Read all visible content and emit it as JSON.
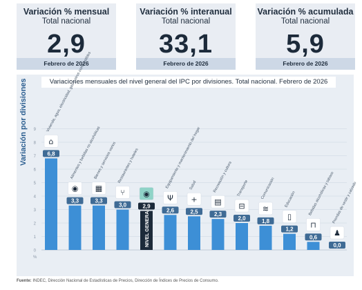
{
  "kpis": [
    {
      "title": "Variación % mensual",
      "subtitle": "Total nacional",
      "value": "2,9",
      "date": "Febrero de 2026"
    },
    {
      "title": "Variación % interanual",
      "subtitle": "Total nacional",
      "value": "33,1",
      "date": "Febrero de 2026"
    },
    {
      "title": "Variación % acumulada",
      "subtitle": "Total nacional",
      "value": "5,9",
      "date": "Febrero de 2026"
    }
  ],
  "chart_data": {
    "type": "bar",
    "title": "Variaciones mensuales del nivel general del IPC por divisiones. Total nacional. Febrero de 2026",
    "ylabel": "Variación por divisiones",
    "yunit": "%",
    "ylim": [
      0,
      9
    ],
    "yticks": [
      "0",
      "1",
      "2",
      "3",
      "4",
      "5",
      "6",
      "7",
      "8",
      "9"
    ],
    "categories": [
      "Vivienda, agua, electricidad, gas y otros combustibles",
      "Alimentos y bebidas no alcohólicas",
      "Bienes y servicios varios",
      "Restaurantes y hoteles",
      "NIVEL GENERAL",
      "Equipamiento y mantenimiento del hogar",
      "Salud",
      "Recreación y cultura",
      "Transporte",
      "Comunicación",
      "Educación",
      "Bebidas alcohólicas y tabaco",
      "Prendas de vestir y calzado"
    ],
    "values": [
      6.8,
      3.3,
      3.3,
      3.0,
      2.9,
      2.6,
      2.5,
      2.3,
      2.0,
      1.8,
      1.2,
      0.6,
      0.0
    ],
    "labels": [
      "6,8",
      "3,3",
      "3,3",
      "3,0",
      "2,9",
      "2,6",
      "2,5",
      "2,3",
      "2,0",
      "1,8",
      "1,2",
      "0,6",
      "0,0"
    ],
    "highlight_index": 4,
    "colors": {
      "bar": "#3d8fd6",
      "highlight": "#1c2a3a",
      "label_bg": "#3f6b95",
      "grid": "#c9d3df"
    }
  },
  "source": {
    "prefix": "Fuente:",
    "text": " INDEC, Dirección Nacional de Estadísticas de Precios, Dirección de Índices de Precios de Consumo."
  }
}
